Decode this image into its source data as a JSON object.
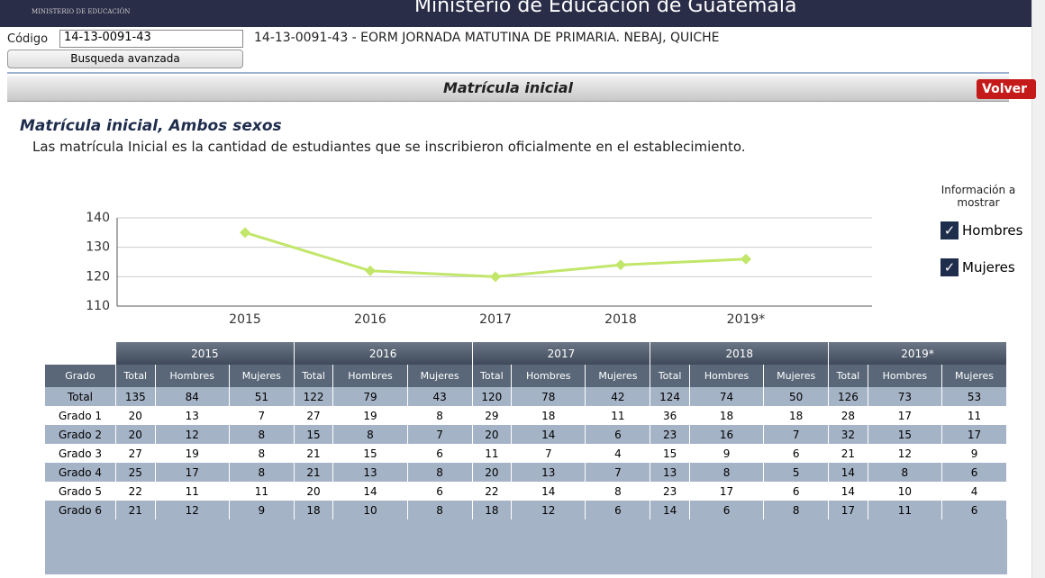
{
  "header": {
    "ministry": "MINISTERIO DE EDUCACIÓN",
    "title": "Ministerio de Educación de Guatemala"
  },
  "search": {
    "code_label": "Código",
    "code_value": "14-13-0091-43",
    "school": "14-13-0091-43 - EORM JORNADA MATUTINA DE PRIMARIA. NEBAJ, QUICHE",
    "advanced_button": "Busqueda avanzada"
  },
  "panel": {
    "title": "Matrícula inicial",
    "back_button": "Volver",
    "section_title": "Matrícula inicial, Ambos sexos",
    "description": "Las matrícula Inicial es la cantidad de estudiantes que se inscribieron oficialmente en el establecimiento."
  },
  "options": {
    "heading": "Información a mostrar",
    "items": [
      "Hombres",
      "Mujeres"
    ]
  },
  "chart_data": {
    "type": "line",
    "categories": [
      "2015",
      "2016",
      "2017",
      "2018",
      "2019*"
    ],
    "values": [
      135,
      122,
      120,
      124,
      126
    ],
    "color": "#c2e66a",
    "ylim": [
      110,
      140
    ],
    "yticks": [
      110,
      120,
      130,
      140
    ],
    "grid": true
  },
  "table": {
    "years": [
      "2015",
      "2016",
      "2017",
      "2018",
      "2019*"
    ],
    "first_header": "Grado",
    "sub_headers": [
      "Total",
      "Hombres",
      "Mujeres"
    ],
    "rows": [
      {
        "label": "Total",
        "values": [
          135,
          84,
          51,
          122,
          79,
          43,
          120,
          78,
          42,
          124,
          74,
          50,
          126,
          73,
          53
        ]
      },
      {
        "label": "Grado 1",
        "values": [
          20,
          13,
          7,
          27,
          19,
          8,
          29,
          18,
          11,
          36,
          18,
          18,
          28,
          17,
          11
        ]
      },
      {
        "label": "Grado 2",
        "values": [
          20,
          12,
          8,
          15,
          8,
          7,
          20,
          14,
          6,
          23,
          16,
          7,
          32,
          15,
          17
        ]
      },
      {
        "label": "Grado 3",
        "values": [
          27,
          19,
          8,
          21,
          15,
          6,
          11,
          7,
          4,
          15,
          9,
          6,
          21,
          12,
          9
        ]
      },
      {
        "label": "Grado 4",
        "values": [
          25,
          17,
          8,
          21,
          13,
          8,
          20,
          13,
          7,
          13,
          8,
          5,
          14,
          8,
          6
        ]
      },
      {
        "label": "Grado 5",
        "values": [
          22,
          11,
          11,
          20,
          14,
          6,
          22,
          14,
          8,
          23,
          17,
          6,
          14,
          10,
          4
        ]
      },
      {
        "label": "Grado 6",
        "values": [
          21,
          12,
          9,
          18,
          10,
          8,
          18,
          12,
          6,
          14,
          6,
          8,
          17,
          11,
          6
        ]
      }
    ]
  }
}
